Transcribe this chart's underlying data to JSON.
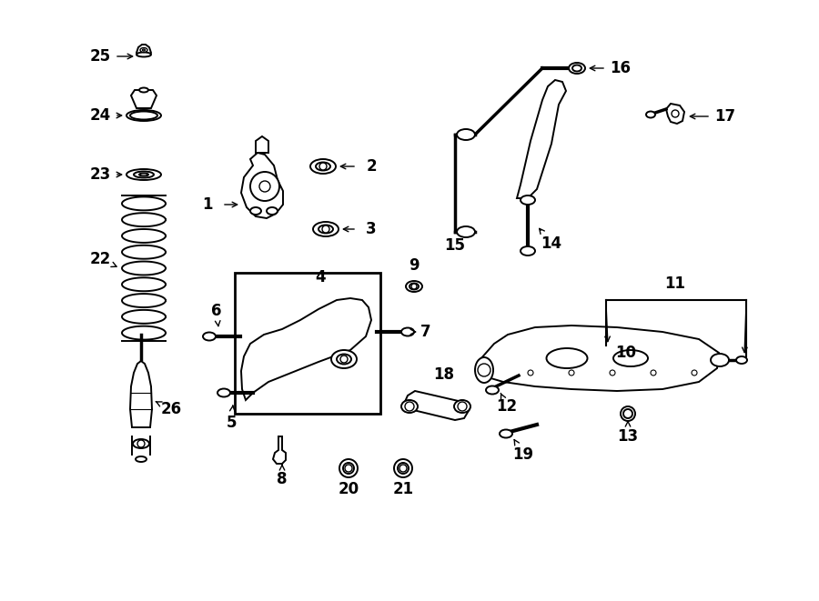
{
  "bg_color": "#ffffff",
  "line_color": "#000000",
  "figsize": [
    9.0,
    6.61
  ],
  "dpi": 100,
  "xlim": [
    0,
    900
  ],
  "ylim": [
    0,
    661
  ]
}
